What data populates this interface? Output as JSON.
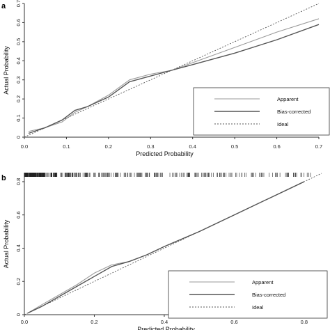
{
  "chart_data": [
    {
      "panel": "a",
      "type": "line",
      "xlabel": "Predicted Probability",
      "ylabel": "Actual Probability",
      "xlim": [
        0,
        0.7
      ],
      "ylim": [
        0,
        0.7
      ],
      "xticks": [
        "0.0",
        "0.1",
        "0.2",
        "0.3",
        "0.4",
        "0.5",
        "0.6",
        "0.7"
      ],
      "yticks": [
        "0",
        "0.1",
        "0.2",
        "0.3",
        "0.4",
        "0.5",
        "0.6",
        "0.7"
      ],
      "legend_position": "bottom-right",
      "series": [
        {
          "name": "Apparent",
          "style": "solid-light",
          "color": "#9a9a9a",
          "x": [
            0.01,
            0.05,
            0.09,
            0.12,
            0.15,
            0.2,
            0.25,
            0.3,
            0.35,
            0.4,
            0.5,
            0.6,
            0.7
          ],
          "y": [
            0.03,
            0.05,
            0.08,
            0.13,
            0.16,
            0.22,
            0.3,
            0.33,
            0.35,
            0.39,
            0.47,
            0.55,
            0.62
          ]
        },
        {
          "name": "Bias-corrected",
          "style": "solid-dark",
          "color": "#555555",
          "x": [
            0.01,
            0.05,
            0.09,
            0.12,
            0.15,
            0.2,
            0.25,
            0.3,
            0.35,
            0.4,
            0.5,
            0.6,
            0.7
          ],
          "y": [
            0.02,
            0.05,
            0.09,
            0.14,
            0.16,
            0.21,
            0.29,
            0.32,
            0.35,
            0.38,
            0.44,
            0.51,
            0.59
          ]
        },
        {
          "name": "Ideal",
          "style": "dashed",
          "color": "#555555",
          "x": [
            0,
            0.7
          ],
          "y": [
            0,
            0.7
          ]
        }
      ]
    },
    {
      "panel": "b",
      "type": "line",
      "xlabel": "Predicted Probability",
      "ylabel": "Actual Probability",
      "xlim": [
        0,
        0.85
      ],
      "ylim": [
        0,
        0.85
      ],
      "xticks": [
        "0.0",
        "0.2",
        "0.4",
        "0.6",
        "0.8"
      ],
      "yticks": [
        "0",
        "0.2",
        "0.4",
        "0.6",
        "0.8"
      ],
      "ytick_values": [
        0,
        0.2,
        0.4,
        0.6,
        0.8
      ],
      "xtick_values": [
        0,
        0.2,
        0.4,
        0.6,
        0.8
      ],
      "legend_position": "bottom-right",
      "rug": "top",
      "series": [
        {
          "name": "Apparent",
          "style": "solid-light",
          "color": "#9a9a9a",
          "x": [
            0.01,
            0.05,
            0.1,
            0.15,
            0.2,
            0.25,
            0.3,
            0.35,
            0.4,
            0.5,
            0.6,
            0.7,
            0.8
          ],
          "y": [
            0.01,
            0.06,
            0.12,
            0.18,
            0.25,
            0.3,
            0.32,
            0.36,
            0.41,
            0.5,
            0.6,
            0.7,
            0.8
          ]
        },
        {
          "name": "Bias-corrected",
          "style": "solid-dark",
          "color": "#555555",
          "x": [
            0.01,
            0.05,
            0.1,
            0.15,
            0.2,
            0.25,
            0.3,
            0.35,
            0.4,
            0.5,
            0.6,
            0.7,
            0.8
          ],
          "y": [
            0.01,
            0.05,
            0.11,
            0.17,
            0.23,
            0.29,
            0.32,
            0.36,
            0.41,
            0.5,
            0.6,
            0.7,
            0.8
          ]
        },
        {
          "name": "Ideal",
          "style": "dashed",
          "color": "#555555",
          "x": [
            0,
            0.85
          ],
          "y": [
            0,
            0.85
          ]
        }
      ]
    }
  ]
}
